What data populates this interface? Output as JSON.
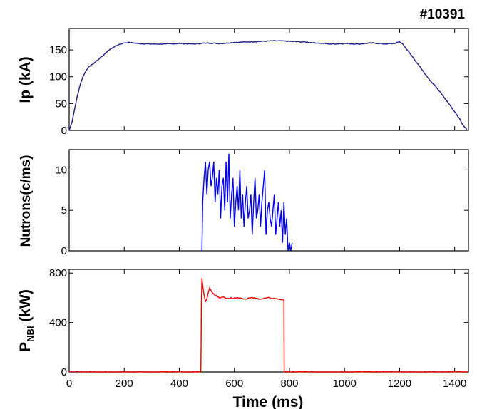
{
  "shot_label": "#10391",
  "x_axis": {
    "label": "Time (ms)",
    "range": [
      0,
      1450
    ],
    "ticks": [
      0,
      200,
      400,
      600,
      800,
      1000,
      1200,
      1400
    ]
  },
  "colors": {
    "ip": "#1a1a8c",
    "neutrons": "#0000ee",
    "pnbi": "#ee0000"
  },
  "chart_data": [
    {
      "type": "line",
      "ylabel": "Ip (kA)",
      "ylim": [
        0,
        190
      ],
      "yticks": [
        0,
        50,
        100,
        150
      ],
      "series": [
        {
          "x": [
            0,
            10,
            20,
            30,
            40,
            50,
            60,
            70,
            80,
            90,
            100,
            120,
            140,
            160,
            180,
            200,
            220,
            250,
            300,
            350,
            400,
            450,
            500,
            550,
            600,
            650,
            700,
            750,
            800,
            850,
            900,
            950,
            1000,
            1050,
            1100,
            1150,
            1180,
            1200,
            1210,
            1220,
            1250,
            1300,
            1350,
            1400,
            1420,
            1430,
            1440,
            1445
          ],
          "y": [
            0,
            15,
            40,
            65,
            85,
            100,
            110,
            118,
            122,
            125,
            130,
            138,
            148,
            155,
            160,
            163,
            164,
            162,
            161,
            161,
            162,
            161,
            163,
            162,
            164,
            165,
            166,
            167,
            166,
            165,
            163,
            161,
            162,
            161,
            163,
            161,
            162,
            165,
            162,
            155,
            135,
            100,
            70,
            35,
            20,
            10,
            4,
            2
          ],
          "noise": 0.8
        }
      ]
    },
    {
      "type": "line",
      "ylabel": "Nutrons(c/ms)",
      "ylim": [
        0,
        12.5
      ],
      "yticks": [
        0,
        5,
        10
      ],
      "series": [
        {
          "x": [
            482,
            485,
            490,
            495,
            500,
            505,
            510,
            515,
            520,
            525,
            530,
            535,
            540,
            545,
            550,
            555,
            560,
            565,
            570,
            575,
            580,
            585,
            590,
            595,
            600,
            605,
            610,
            615,
            620,
            625,
            630,
            635,
            640,
            645,
            650,
            655,
            660,
            665,
            670,
            675,
            680,
            685,
            690,
            695,
            700,
            705,
            710,
            715,
            720,
            725,
            730,
            735,
            740,
            745,
            750,
            755,
            760,
            765,
            770,
            775,
            780,
            785,
            790,
            795,
            800,
            805,
            810
          ],
          "y": [
            0,
            6,
            9,
            11,
            7,
            10,
            11,
            8,
            9,
            11,
            6,
            9,
            7,
            10,
            4,
            8,
            9,
            5,
            11,
            6,
            12,
            4,
            7,
            9,
            3,
            6,
            8,
            5,
            10,
            4,
            7,
            3,
            6,
            8,
            4,
            5,
            7,
            2,
            6,
            9,
            4,
            5,
            7,
            3,
            6,
            8,
            10,
            2,
            5,
            6,
            4,
            3,
            5,
            7,
            2,
            4,
            6,
            3,
            5,
            1,
            6,
            2,
            4,
            0,
            1,
            0,
            1
          ],
          "noise": 0
        }
      ]
    },
    {
      "type": "line",
      "ylabel": "PNBI (kW)",
      "ylim": [
        0,
        830
      ],
      "yticks": [
        0,
        400,
        800
      ],
      "series": [
        {
          "x": [
            0,
            478,
            479,
            480,
            482,
            485,
            490,
            495,
            500,
            505,
            510,
            515,
            520,
            530,
            540,
            550,
            560,
            580,
            600,
            620,
            640,
            660,
            680,
            700,
            720,
            740,
            760,
            775,
            780,
            781,
            782,
            790,
            1445
          ],
          "y": [
            0,
            0,
            150,
            550,
            760,
            700,
            620,
            570,
            590,
            640,
            680,
            660,
            640,
            620,
            610,
            600,
            605,
            595,
            600,
            600,
            590,
            600,
            595,
            590,
            600,
            595,
            590,
            585,
            580,
            0,
            0,
            0,
            0
          ],
          "noise": 5
        }
      ]
    }
  ]
}
